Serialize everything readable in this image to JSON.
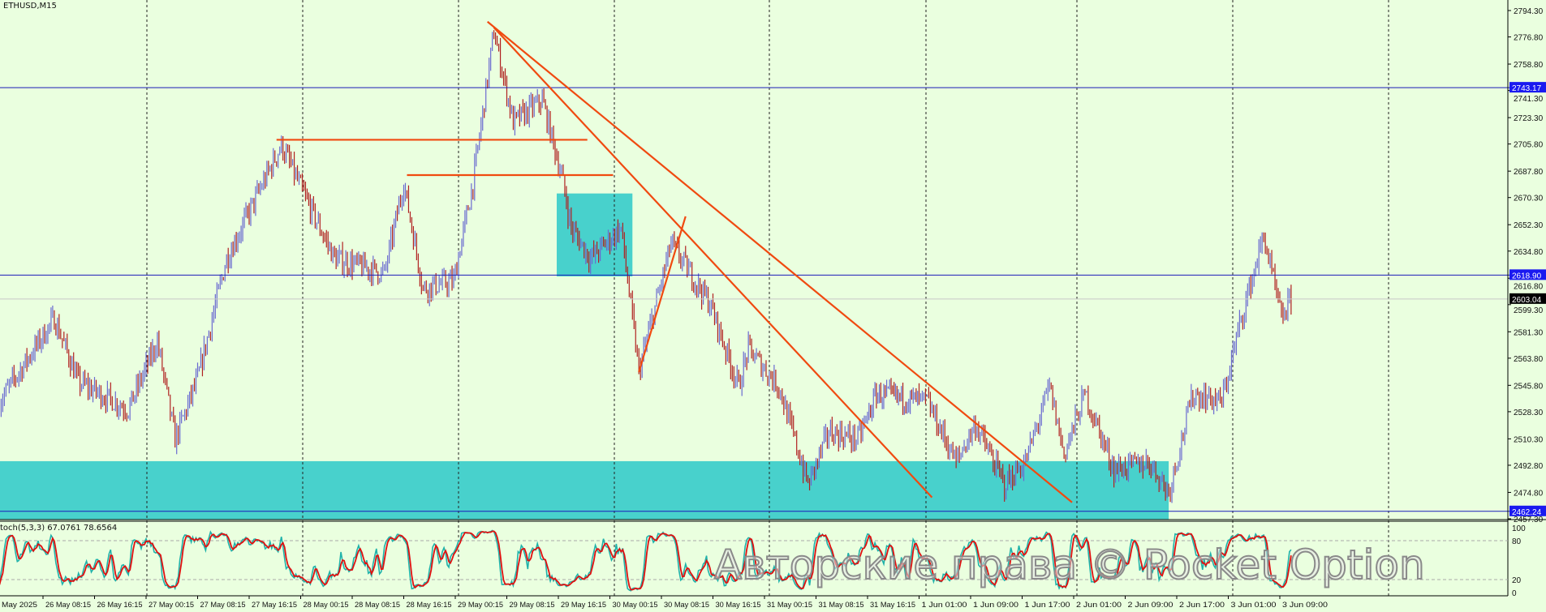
{
  "header": {
    "symbol_label": "ETHUSD,M15"
  },
  "stochastic": {
    "label": "toch(5,3,3) 67.0761 78.6564",
    "levels": [
      "100",
      "80",
      "20",
      "0"
    ]
  },
  "watermark": "Авторские права © Pocket Option",
  "colors": {
    "background": "#eaffdf",
    "bull": "#6a6ad0",
    "bear": "#b02020",
    "zone": "#48d1cc",
    "trendline": "#f04a10",
    "level": "#1a1ab8",
    "stoch_main": "#e01010",
    "stoch_signal": "#20b2aa"
  },
  "chart_data": {
    "type": "ohlc",
    "title": "ETHUSD,M15",
    "ylim": [
      2457.3,
      2794.3
    ],
    "price_ticks": [
      "2794.30",
      "2776.80",
      "2758.80",
      "2741.30",
      "2723.30",
      "2705.80",
      "2687.80",
      "2670.30",
      "2652.30",
      "2634.80",
      "2616.80",
      "2599.30",
      "2581.30",
      "2563.80",
      "2545.80",
      "2528.30",
      "2510.30",
      "2492.80",
      "2474.80",
      "2457.30"
    ],
    "price_tick_values": [
      2794.3,
      2776.8,
      2758.8,
      2741.3,
      2723.3,
      2705.8,
      2687.8,
      2670.3,
      2652.3,
      2634.8,
      2616.8,
      2599.3,
      2581.3,
      2563.8,
      2545.8,
      2528.3,
      2510.3,
      2492.8,
      2474.8,
      2457.3
    ],
    "time_first_label": "May 2025",
    "time_ticks": [
      {
        "label": "26 May 08:15",
        "t": "2025-05-26T08:15"
      },
      {
        "label": "26 May 16:15",
        "t": "2025-05-26T16:15"
      },
      {
        "label": "27 May 00:15",
        "t": "2025-05-27T00:15"
      },
      {
        "label": "27 May 08:15",
        "t": "2025-05-27T08:15"
      },
      {
        "label": "27 May 16:15",
        "t": "2025-05-27T16:15"
      },
      {
        "label": "28 May 00:15",
        "t": "2025-05-28T00:15"
      },
      {
        "label": "28 May 08:15",
        "t": "2025-05-28T08:15"
      },
      {
        "label": "28 May 16:15",
        "t": "2025-05-28T16:15"
      },
      {
        "label": "29 May 00:15",
        "t": "2025-05-29T00:15"
      },
      {
        "label": "29 May 08:15",
        "t": "2025-05-29T08:15"
      },
      {
        "label": "29 May 16:15",
        "t": "2025-05-29T16:15"
      },
      {
        "label": "30 May 00:15",
        "t": "2025-05-30T00:15"
      },
      {
        "label": "30 May 08:15",
        "t": "2025-05-30T08:15"
      },
      {
        "label": "30 May 16:15",
        "t": "2025-05-30T16:15"
      },
      {
        "label": "31 May 00:15",
        "t": "2025-05-31T00:15"
      },
      {
        "label": "31 May 08:15",
        "t": "2025-05-31T08:15"
      },
      {
        "label": "31 May 16:15",
        "t": "2025-05-31T16:15"
      },
      {
        "label": "1 Jun 01:00",
        "t": "2025-06-01T01:00"
      },
      {
        "label": "1 Jun 09:00",
        "t": "2025-06-01T09:00"
      },
      {
        "label": "1 Jun 17:00",
        "t": "2025-06-01T17:00"
      },
      {
        "label": "2 Jun 01:00",
        "t": "2025-06-02T01:00"
      },
      {
        "label": "2 Jun 09:00",
        "t": "2025-06-02T09:00"
      },
      {
        "label": "2 Jun 17:00",
        "t": "2025-06-02T17:00"
      },
      {
        "label": "3 Jun 01:00",
        "t": "2025-06-03T01:00"
      },
      {
        "label": "3 Jun 09:00",
        "t": "2025-06-03T09:00"
      }
    ],
    "price_path": [
      [
        "2025-05-26T01:30",
        2535
      ],
      [
        "2025-05-26T10:00",
        2590
      ],
      [
        "2025-05-26T13:45",
        2548
      ],
      [
        "2025-05-26T21:30",
        2530
      ],
      [
        "2025-05-27T02:00",
        2575
      ],
      [
        "2025-05-27T04:45",
        2510
      ],
      [
        "2025-05-27T08:15",
        2550
      ],
      [
        "2025-05-27T10:30",
        2590
      ],
      [
        "2025-05-27T12:45",
        2630
      ],
      [
        "2025-05-27T21:15",
        2705
      ],
      [
        "2025-05-28T01:00",
        2670
      ],
      [
        "2025-05-28T05:30",
        2630
      ],
      [
        "2025-05-28T13:15",
        2620
      ],
      [
        "2025-05-28T16:15",
        2680
      ],
      [
        "2025-05-28T19:15",
        2610
      ],
      [
        "2025-05-29T00:00",
        2615
      ],
      [
        "2025-05-29T03:00",
        2680
      ],
      [
        "2025-05-29T06:15",
        2780
      ],
      [
        "2025-05-29T09:15",
        2720
      ],
      [
        "2025-05-29T13:45",
        2735
      ],
      [
        "2025-05-29T16:45",
        2685
      ],
      [
        "2025-05-29T18:15",
        2650
      ],
      [
        "2025-05-29T21:15",
        2630
      ],
      [
        "2025-05-30T02:00",
        2650
      ],
      [
        "2025-05-30T04:45",
        2555
      ],
      [
        "2025-05-30T09:45",
        2640
      ],
      [
        "2025-05-30T15:45",
        2600
      ],
      [
        "2025-05-30T20:15",
        2545
      ],
      [
        "2025-05-30T21:45",
        2570
      ],
      [
        "2025-05-31T02:30",
        2545
      ],
      [
        "2025-05-31T07:00",
        2480
      ],
      [
        "2025-05-31T10:15",
        2515
      ],
      [
        "2025-05-31T14:45",
        2510
      ],
      [
        "2025-05-31T17:45",
        2540
      ],
      [
        "2025-06-01T02:15",
        2535
      ],
      [
        "2025-06-01T06:45",
        2495
      ],
      [
        "2025-06-01T09:45",
        2520
      ],
      [
        "2025-06-01T14:15",
        2480
      ],
      [
        "2025-06-01T17:30",
        2495
      ],
      [
        "2025-06-01T21:15",
        2545
      ],
      [
        "2025-06-01T23:30",
        2500
      ],
      [
        "2025-06-02T02:45",
        2540
      ],
      [
        "2025-06-02T07:15",
        2490
      ],
      [
        "2025-06-02T12:45",
        2495
      ],
      [
        "2025-06-02T15:45",
        2475
      ],
      [
        "2025-06-02T19:30",
        2540
      ],
      [
        "2025-06-03T00:00",
        2535
      ],
      [
        "2025-06-03T03:00",
        2590
      ],
      [
        "2025-06-03T06:30",
        2645
      ],
      [
        "2025-06-03T09:15",
        2590
      ],
      [
        "2025-06-03T10:45",
        2603
      ]
    ],
    "last_price": "2603.04",
    "horizontal_levels": [
      {
        "price": 2743.17,
        "label": "2743.17"
      },
      {
        "price": 2618.9,
        "label": "2618.90"
      },
      {
        "price": 2462.24,
        "label": "2462.24"
      }
    ],
    "zones": [
      {
        "t1": "2025-05-29T16:00",
        "t2": "2025-05-30T03:45",
        "p1": 2673,
        "p2": 2618
      },
      {
        "t1": "2025-05-26T01:30",
        "t2": "2025-06-02T15:45",
        "p1": 2495.5,
        "p2": 2456.5
      }
    ],
    "segments": [
      {
        "t1": "2025-05-27T20:30",
        "p1": 2708.6,
        "t2": "2025-05-29T20:45",
        "p2": 2708.6
      },
      {
        "t1": "2025-05-28T16:45",
        "p1": 2685.2,
        "t2": "2025-05-30T00:45",
        "p2": 2685.2
      },
      {
        "t1": "2025-05-29T05:15",
        "p1": 2786.9,
        "t2": "2025-06-02T00:45",
        "p2": 2468.2
      },
      {
        "t1": "2025-05-29T06:15",
        "p1": 2783.0,
        "t2": "2025-06-01T03:00",
        "p2": 2471.5
      },
      {
        "t1": "2025-05-30T04:45",
        "p1": 2554.6,
        "t2": "2025-05-30T12:00",
        "p2": 2657.8
      }
    ]
  }
}
